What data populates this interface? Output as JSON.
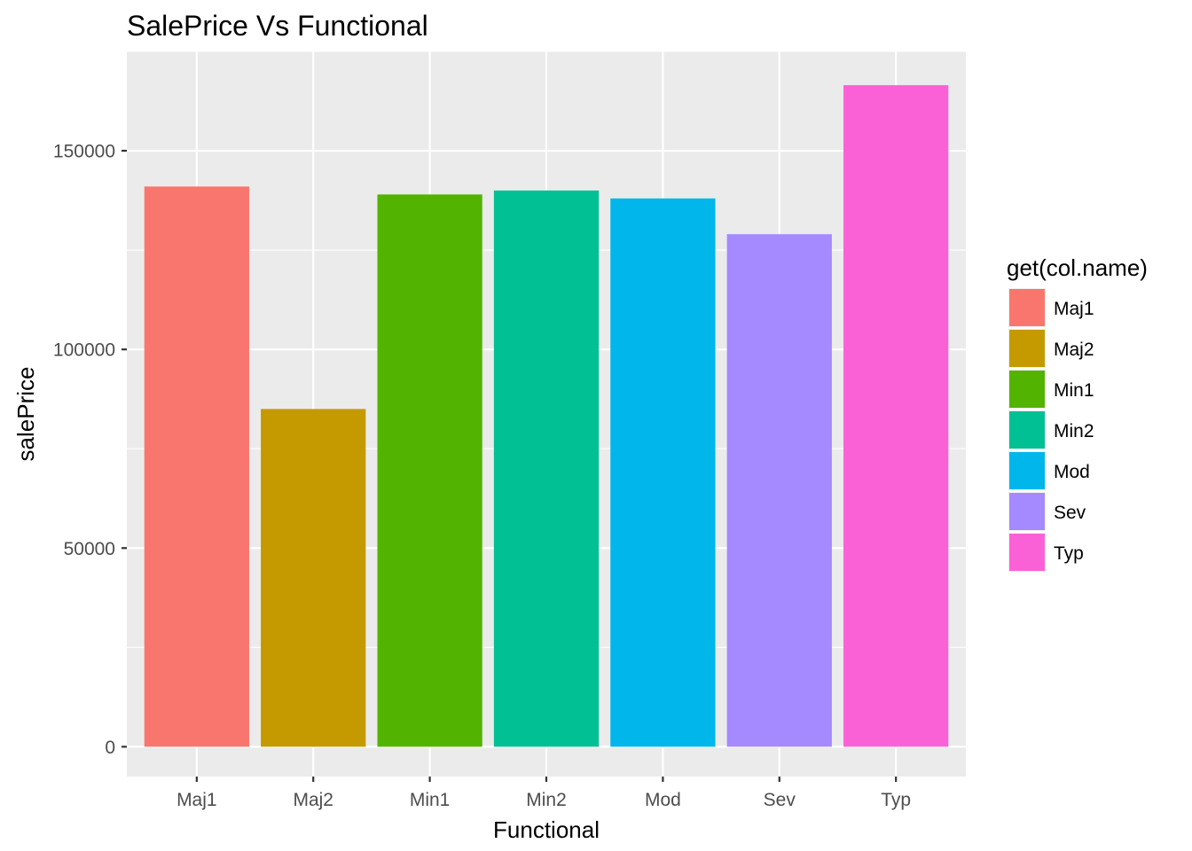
{
  "chart_data": {
    "type": "bar",
    "title": "SalePrice Vs Functional",
    "xlabel": "Functional",
    "ylabel": "salePrice",
    "categories": [
      "Maj1",
      "Maj2",
      "Min1",
      "Min2",
      "Mod",
      "Sev",
      "Typ"
    ],
    "values": [
      141000,
      85000,
      139000,
      140000,
      138000,
      129000,
      166500
    ],
    "colors": [
      "#F8766D",
      "#C49A00",
      "#53B400",
      "#00C094",
      "#00B6EB",
      "#A58AFF",
      "#FB61D7"
    ],
    "yticks": [
      0,
      50000,
      100000,
      150000
    ],
    "ytick_labels": [
      "0",
      "50000",
      "100000",
      "150000"
    ],
    "ylim": [
      -7500,
      175000
    ],
    "grid": true,
    "panel_background": "#EBEBEB",
    "legend": {
      "title": "get(col.name)",
      "position": "right",
      "items": [
        "Maj1",
        "Maj2",
        "Min1",
        "Min2",
        "Mod",
        "Sev",
        "Typ"
      ]
    }
  }
}
